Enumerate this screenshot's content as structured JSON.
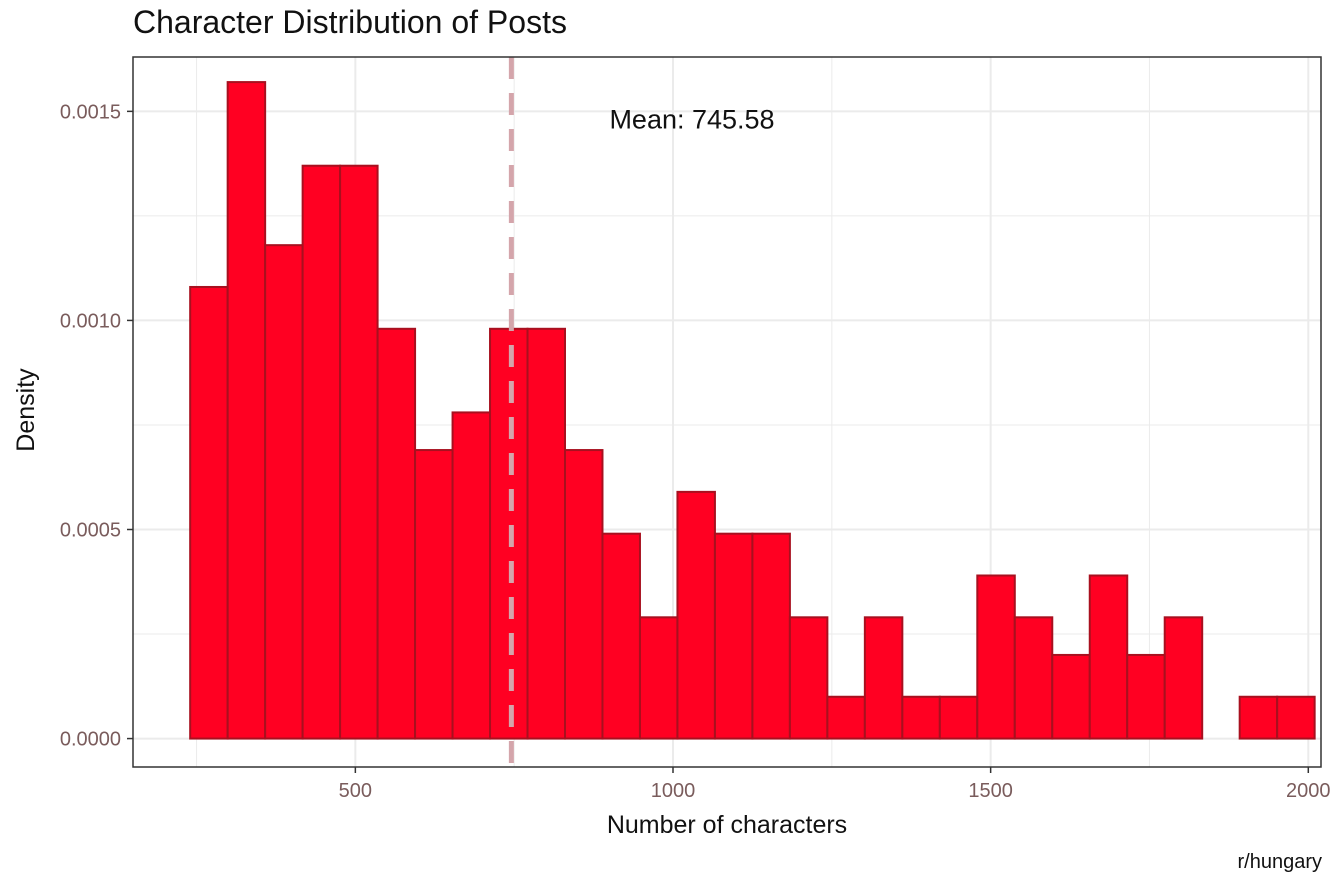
{
  "chart_data": {
    "type": "histogram",
    "title": "Character Distribution of Posts",
    "xlabel": "Number of characters",
    "ylabel": "Density",
    "caption": "r/hungary",
    "annotation": "Mean: 745.58",
    "mean": 745.58,
    "xlim": [
      150,
      2020
    ],
    "ylim": [
      -6.8e-05,
      0.00163
    ],
    "x_ticks": [
      500,
      1000,
      1500,
      2000
    ],
    "x_tick_labels": [
      "500",
      "1000",
      "1500",
      "2000"
    ],
    "y_ticks": [
      0,
      0.0005,
      0.001,
      0.0015
    ],
    "y_tick_labels": [
      "0.0000",
      "0.0005",
      "0.0010",
      "0.0015"
    ],
    "grid": true,
    "bin_width": 59,
    "bins": [
      {
        "x0": 240,
        "x1": 299,
        "density": 0.00108
      },
      {
        "x0": 299,
        "x1": 358,
        "density": 0.00157
      },
      {
        "x0": 358,
        "x1": 417,
        "density": 0.00118
      },
      {
        "x0": 417,
        "x1": 476,
        "density": 0.00137
      },
      {
        "x0": 476,
        "x1": 535,
        "density": 0.00137
      },
      {
        "x0": 535,
        "x1": 594,
        "density": 0.00098
      },
      {
        "x0": 594,
        "x1": 653,
        "density": 0.00069
      },
      {
        "x0": 653,
        "x1": 712,
        "density": 0.00078
      },
      {
        "x0": 712,
        "x1": 771,
        "density": 0.00098
      },
      {
        "x0": 771,
        "x1": 830,
        "density": 0.00098
      },
      {
        "x0": 830,
        "x1": 889,
        "density": 0.00069
      },
      {
        "x0": 889,
        "x1": 948,
        "density": 0.00049
      },
      {
        "x0": 948,
        "x1": 1007,
        "density": 0.00029
      },
      {
        "x0": 1007,
        "x1": 1066,
        "density": 0.00059
      },
      {
        "x0": 1066,
        "x1": 1125,
        "density": 0.00049
      },
      {
        "x0": 1125,
        "x1": 1184,
        "density": 0.00049
      },
      {
        "x0": 1184,
        "x1": 1243,
        "density": 0.00029
      },
      {
        "x0": 1243,
        "x1": 1302,
        "density": 0.0001
      },
      {
        "x0": 1302,
        "x1": 1361,
        "density": 0.00029
      },
      {
        "x0": 1361,
        "x1": 1420,
        "density": 0.0001
      },
      {
        "x0": 1420,
        "x1": 1479,
        "density": 0.0001
      },
      {
        "x0": 1479,
        "x1": 1538,
        "density": 0.00039
      },
      {
        "x0": 1538,
        "x1": 1597,
        "density": 0.00029
      },
      {
        "x0": 1597,
        "x1": 1656,
        "density": 0.0002
      },
      {
        "x0": 1656,
        "x1": 1715,
        "density": 0.00039
      },
      {
        "x0": 1715,
        "x1": 1774,
        "density": 0.0002
      },
      {
        "x0": 1774,
        "x1": 1833,
        "density": 0.00029
      },
      {
        "x0": 1833,
        "x1": 1892,
        "density": 0.0
      },
      {
        "x0": 1892,
        "x1": 1951,
        "density": 0.0001
      },
      {
        "x0": 1951,
        "x1": 2010,
        "density": 0.0001
      }
    ],
    "colors": {
      "bar_fill": "#ff0022",
      "bar_stroke": "#a8101f",
      "mean_line": "#d4a5ab",
      "grid": "#ebebeb",
      "panel_border": "#333333"
    }
  }
}
